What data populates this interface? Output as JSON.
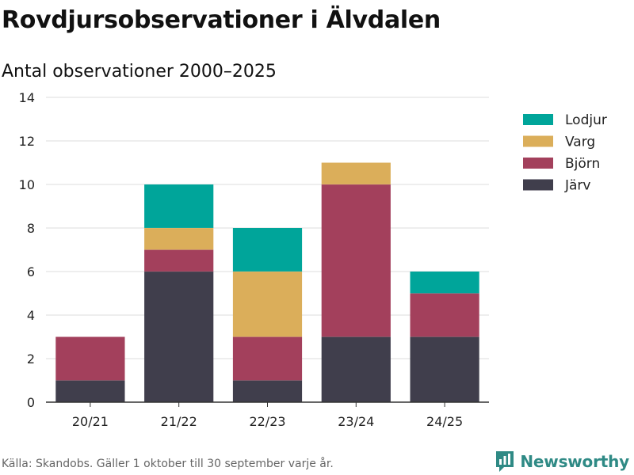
{
  "title": "Rovdjursobservationer i Älvdalen",
  "subtitle": "Antal observationer 2000–2025",
  "source": "Källa: Skandobs. Gäller 1 oktober till 30 september varje år.",
  "brand": {
    "name": "Newsworthy",
    "icon": "newsworthy-logo-icon",
    "color": "#2f8a85"
  },
  "chart_data": {
    "type": "bar",
    "stacked": true,
    "title": "Rovdjursobservationer i Älvdalen",
    "subtitle": "Antal observationer 2000–2025",
    "xlabel": "",
    "ylabel": "",
    "categories": [
      "20/21",
      "21/22",
      "22/23",
      "23/24",
      "24/25"
    ],
    "y_ticks": [
      0,
      2,
      4,
      6,
      8,
      10,
      12,
      14
    ],
    "ylim": [
      0,
      14
    ],
    "grid": true,
    "legend_position": "right",
    "series": [
      {
        "name": "Järv",
        "color": "#403e4c",
        "values": [
          1,
          6,
          1,
          3,
          3
        ]
      },
      {
        "name": "Björn",
        "color": "#a3405c",
        "values": [
          2,
          1,
          2,
          7,
          2
        ]
      },
      {
        "name": "Varg",
        "color": "#dbae5a",
        "values": [
          0,
          1,
          3,
          1,
          0
        ]
      },
      {
        "name": "Lodjur",
        "color": "#00a59a",
        "values": [
          0,
          2,
          2,
          0,
          1
        ]
      }
    ],
    "legend_order": [
      "Lodjur",
      "Varg",
      "Björn",
      "Järv"
    ]
  }
}
